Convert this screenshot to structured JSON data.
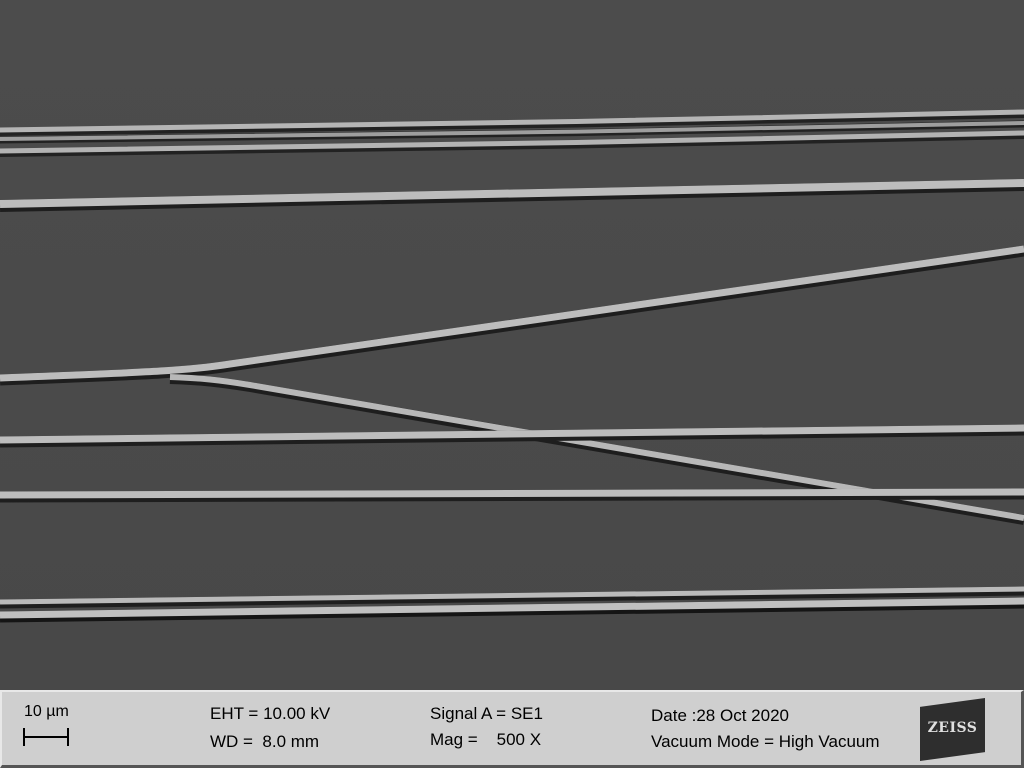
{
  "image": {
    "background_color": "#4a4a4a",
    "fiber_color": "#b8b8b8",
    "fiber_edge_color": "#222222"
  },
  "info_bar": {
    "scale_label": "10 µm",
    "eht": "EHT = 10.00 kV",
    "wd": "WD =  8.0 mm",
    "signal": "Signal A = SE1",
    "mag": "Mag =    500 X",
    "date": "Date :28 Oct 2020",
    "vacuum": "Vacuum Mode = High Vacuum",
    "logo_text": "ZEISS"
  }
}
